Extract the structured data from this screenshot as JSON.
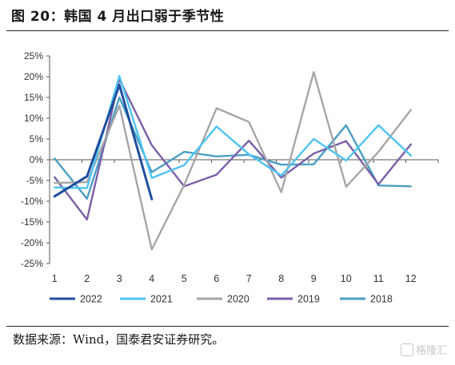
{
  "title": "图 20：韩国 4 月出口弱于季节性",
  "source": "数据来源：Wind，国泰君安证券研究。",
  "watermark": "格隆汇",
  "chart_data": {
    "type": "line",
    "categories": [
      "1",
      "2",
      "3",
      "4",
      "5",
      "6",
      "7",
      "8",
      "9",
      "10",
      "11",
      "12"
    ],
    "y_ticks": [
      "25%",
      "20%",
      "15%",
      "10%",
      "5%",
      "0%",
      "-5%",
      "-10%",
      "-15%",
      "-20%",
      "-25%"
    ],
    "ylim": [
      -25,
      25
    ],
    "y_unit": "%",
    "grid": false,
    "legend_position": "bottom",
    "series": [
      {
        "name": "2022",
        "color": "#1f4e9c",
        "values": [
          -8.8,
          -4.0,
          18.0,
          -9.5,
          null,
          null,
          null,
          null,
          null,
          null,
          null,
          null
        ]
      },
      {
        "name": "2021",
        "color": "#4fc3f0",
        "values": [
          -6.7,
          -6.8,
          20.2,
          -4.4,
          -1.3,
          8.0,
          1.3,
          -3.8,
          5.0,
          -0.2,
          8.3,
          1.0
        ]
      },
      {
        "name": "2020",
        "color": "#a6a6a6",
        "values": [
          -5.6,
          -5.4,
          13.0,
          -21.6,
          -6.1,
          12.4,
          9.1,
          -7.8,
          21.1,
          -6.5,
          1.9,
          12.0
        ]
      },
      {
        "name": "2019",
        "color": "#7b5fa8",
        "values": [
          -4.2,
          -14.4,
          19.4,
          3.5,
          -6.4,
          -3.6,
          4.6,
          -4.3,
          1.5,
          4.5,
          -5.9,
          3.7
        ]
      },
      {
        "name": "2018",
        "color": "#4a9fc4",
        "values": [
          0.3,
          -9.4,
          15.0,
          -3.0,
          1.9,
          0.8,
          1.2,
          -1.2,
          -1.1,
          8.3,
          -6.2,
          -6.4
        ]
      }
    ]
  }
}
